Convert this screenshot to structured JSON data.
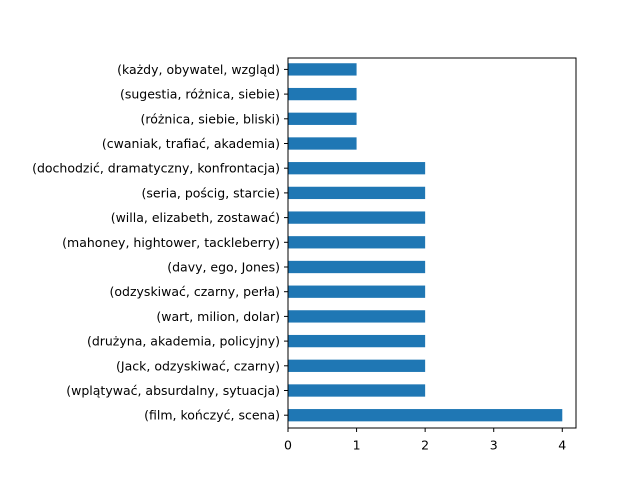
{
  "chart_data": {
    "type": "bar",
    "orientation": "horizontal",
    "title": "",
    "xlabel": "",
    "ylabel": "",
    "categories": [
      "(film, kończyć, scena)",
      "(wplątywać, absurdalny, sytuacja)",
      "(Jack, odzyskiwać, czarny)",
      "(drużyna, akademia, policyjny)",
      "(wart, milion, dolar)",
      "(odzyskiwać, czarny, perła)",
      "(davy, ego, Jones)",
      "(mahoney, hightower, tackleberry)",
      "(willa, elizabeth, zostawać)",
      "(seria, pościg, starcie)",
      "(dochodzić, dramatyczny, konfrontacja)",
      "(cwaniak, trafiać, akademia)",
      "(różnica, siebie, bliski)",
      "(sugestia, różnica, siebie)",
      "(każdy, obywatel, wzgląd)"
    ],
    "values": [
      4,
      2,
      2,
      2,
      2,
      2,
      2,
      2,
      2,
      2,
      2,
      1,
      1,
      1,
      1
    ],
    "xlim": [
      0,
      4.2
    ],
    "xticks": [
      "0",
      "1",
      "2",
      "3",
      "4"
    ],
    "grid": false,
    "bar_color": "#1f77b4"
  }
}
